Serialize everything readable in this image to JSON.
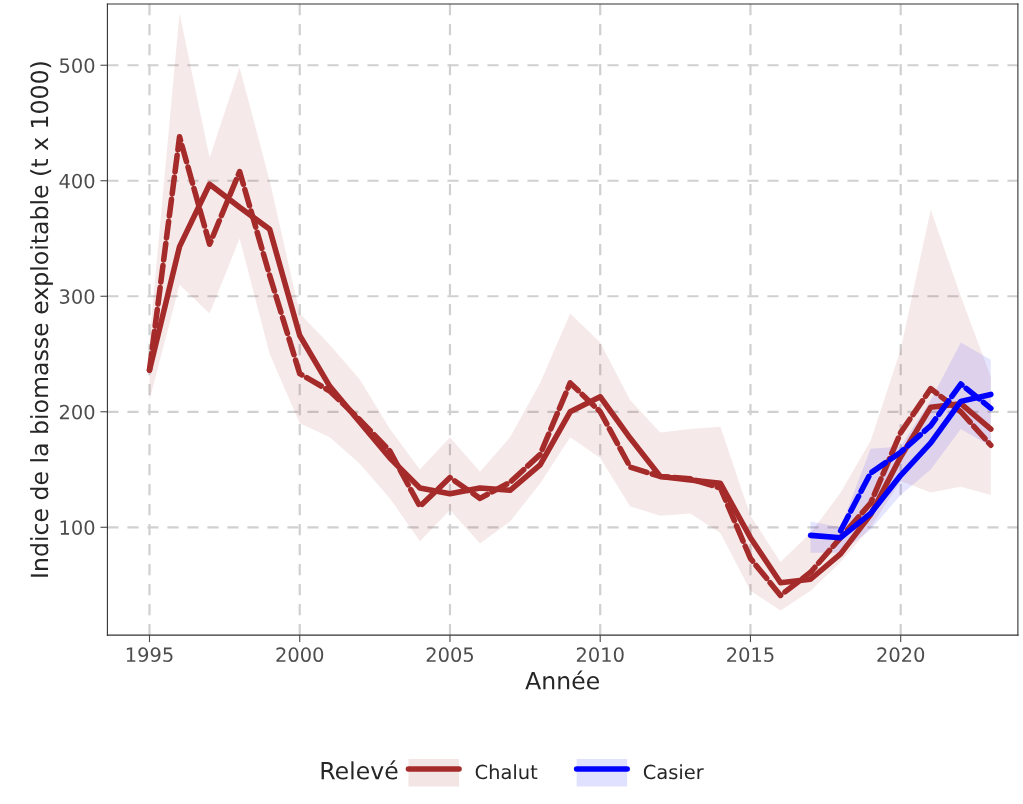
{
  "chart_data": {
    "type": "line",
    "xlabel": "Année",
    "ylabel": "Indice de la biomasse exploitable (t x 1000)",
    "legend_title": "Relevé",
    "legend": "bottom",
    "grid": true,
    "xlim": [
      1993.6,
      2023.9
    ],
    "xticks": [
      1995,
      2000,
      2005,
      2010,
      2015,
      2020
    ],
    "ylim": [
      6.6,
      553
    ],
    "yticks": [
      100,
      200,
      300,
      400,
      500
    ],
    "series": [
      {
        "name": "Chalut",
        "color": "#a52a2a",
        "line_style": "solid",
        "x": [
          1995,
          1996,
          1997,
          1998,
          1999,
          2000,
          2001,
          2002,
          2003,
          2004,
          2005,
          2006,
          2007,
          2008,
          2009,
          2010,
          2011,
          2012,
          2013,
          2014,
          2015,
          2016,
          2017,
          2018,
          2019,
          2020,
          2021,
          2022,
          2023
        ],
        "values": [
          236,
          343,
          397,
          377,
          358,
          266,
          222,
          191,
          160,
          134,
          129,
          134,
          132,
          154,
          200,
          213,
          177,
          144,
          141,
          138,
          91,
          52,
          55,
          77,
          111,
          161,
          204,
          207,
          185
        ],
        "lower": [
          210,
          310,
          285,
          350,
          250,
          190,
          178,
          155,
          125,
          88,
          115,
          86,
          105,
          138,
          178,
          160,
          118,
          110,
          112,
          95,
          45,
          28,
          45,
          70,
          100,
          140,
          130,
          135,
          128
        ],
        "upper": [
          262,
          545,
          420,
          498,
          400,
          285,
          258,
          228,
          185,
          150,
          178,
          148,
          178,
          225,
          285,
          260,
          210,
          182,
          185,
          187,
          110,
          70,
          95,
          130,
          175,
          254,
          375,
          300,
          230
        ]
      },
      {
        "color": "#a52a2a",
        "line_style": "dashed",
        "x": [
          1995,
          1996,
          1997,
          1998,
          1999,
          2000,
          2001,
          2002,
          2003,
          2004,
          2005,
          2006,
          2007,
          2008,
          2009,
          2010,
          2011,
          2012,
          2013,
          2014,
          2015,
          2016,
          2017,
          2018,
          2019,
          2020,
          2021,
          2022,
          2023
        ],
        "values": [
          236,
          438,
          345,
          408,
          318,
          233,
          218,
          193,
          166,
          118,
          143,
          125,
          139,
          163,
          225,
          200,
          152,
          144,
          142,
          134,
          73,
          41,
          61,
          91,
          121,
          182,
          220,
          200,
          171
        ]
      },
      {
        "name": "Casier",
        "color": "#0000ff",
        "line_style": "solid",
        "x": [
          2017,
          2018,
          2019,
          2020,
          2021,
          2022,
          2023
        ],
        "values": [
          93,
          91,
          112,
          145,
          173,
          209,
          215
        ],
        "lower": [
          78,
          78,
          98,
          128,
          150,
          185,
          170
        ],
        "upper": [
          105,
          100,
          168,
          170,
          210,
          260,
          245
        ]
      },
      {
        "color": "#0000ff",
        "line_style": "dashed",
        "x": [
          2018,
          2019,
          2020,
          2021,
          2022,
          2023
        ],
        "values": [
          97,
          147,
          165,
          188,
          224,
          203
        ]
      }
    ]
  }
}
